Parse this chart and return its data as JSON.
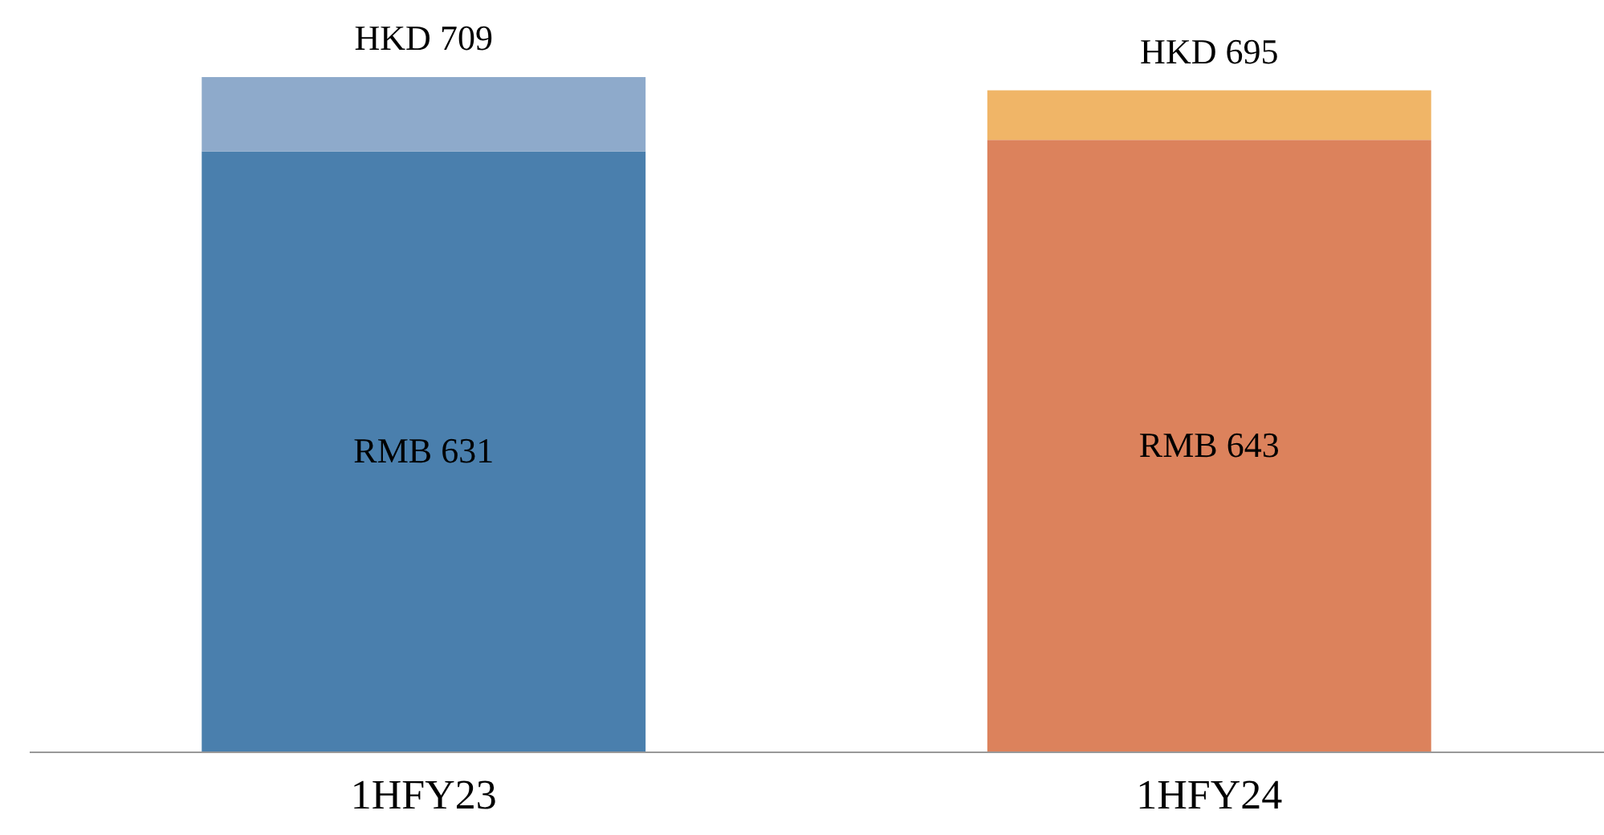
{
  "chart_data": {
    "type": "bar",
    "stacked": true,
    "categories": [
      "1HFY23",
      "1HFY24"
    ],
    "series": [
      {
        "colors": [
          "#4a7fad",
          "#dc825c"
        ],
        "values": [
          631,
          643
        ],
        "value_labels": [
          "RMB 631",
          "RMB 643"
        ]
      },
      {
        "colors": [
          "#8eaacb",
          "#f0b567"
        ],
        "values": [
          78,
          52
        ]
      }
    ],
    "totals": [
      "HKD 709",
      "HKD 695"
    ],
    "tick_labels": "x"
  }
}
